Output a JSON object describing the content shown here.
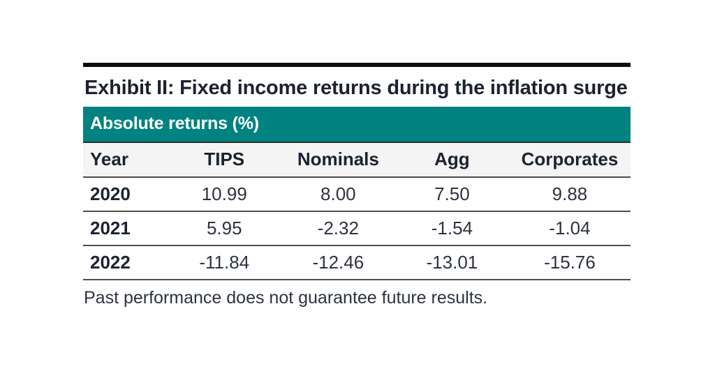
{
  "title": "Exhibit II: Fixed income returns during the inflation surge",
  "banner": {
    "label": "Absolute returns (%)"
  },
  "footnote": "Past performance does not guarantee future results.",
  "colors": {
    "accent_teal": "#008380",
    "banner_text": "#ffffff",
    "header_row_bg": "#f4f4f5",
    "heading_text": "#1b2330",
    "body_text": "#2d333d",
    "top_rule": "#0c0c0c",
    "row_separator": "#4d4d4d"
  },
  "chart_data": {
    "type": "table",
    "title": "Absolute returns (%)",
    "columns": [
      "Year",
      "TIPS",
      "Nominals",
      "Agg",
      "Corporates"
    ],
    "rows": [
      [
        "2020",
        "10.99",
        "8.00",
        "7.50",
        "9.88"
      ],
      [
        "2021",
        "5.95",
        "-2.32",
        "-1.54",
        "-1.04"
      ],
      [
        "2022",
        "-11.84",
        "-12.46",
        "-13.01",
        "-15.76"
      ]
    ]
  }
}
